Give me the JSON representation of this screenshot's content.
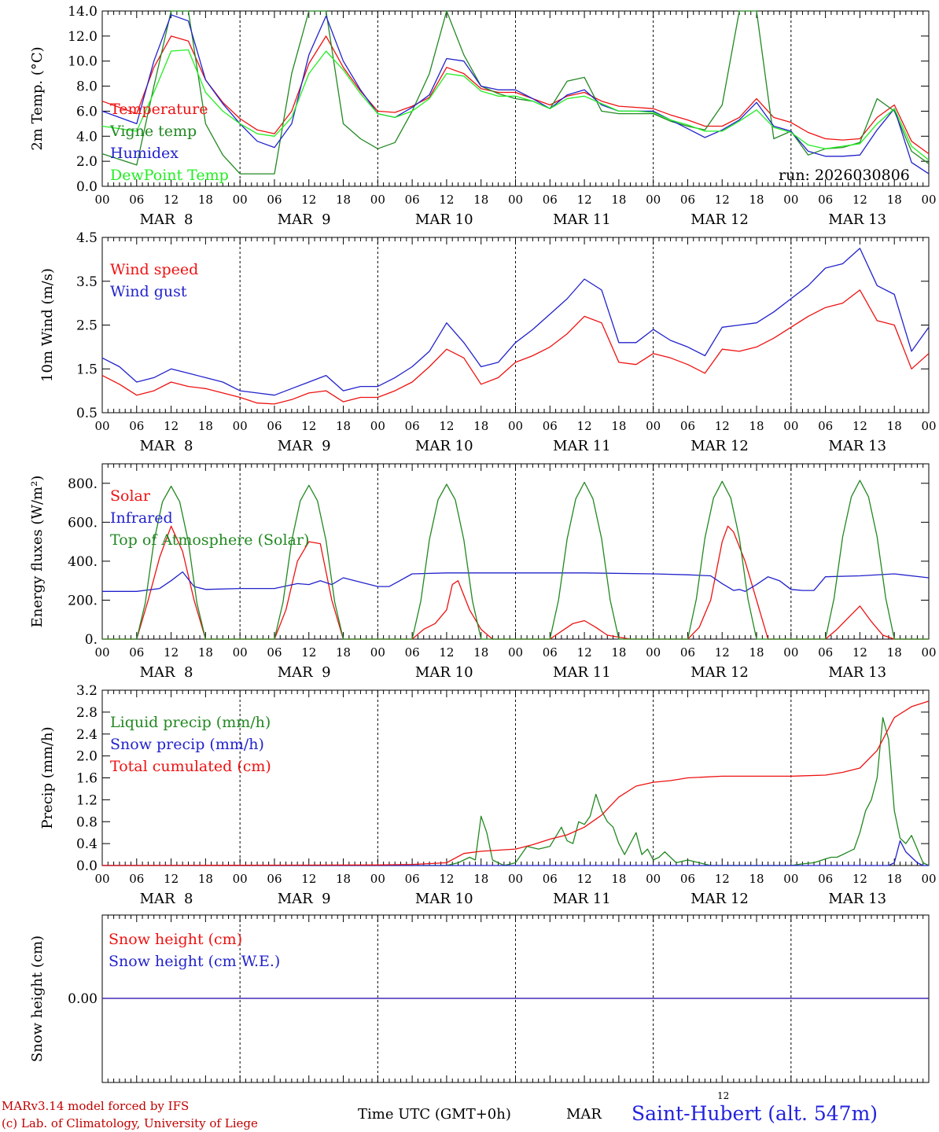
{
  "chart_data": [
    {
      "type": "line",
      "ylabel": "2m Temp. (°C)",
      "ylim": [
        0,
        14
      ],
      "yticks": [
        0,
        2,
        4,
        6,
        8,
        10,
        12,
        14
      ],
      "ytick_labels": [
        "0.0",
        "2.0",
        "4.0",
        "6.0",
        "8.0",
        "10.0",
        "12.0",
        "14.0"
      ],
      "xlim": [
        0,
        144
      ],
      "annotation": "run: 2026030806",
      "x": [
        0,
        6,
        9,
        12,
        15,
        18,
        21,
        24,
        27,
        30,
        33,
        36,
        39,
        42,
        45,
        48,
        51,
        54,
        57,
        60,
        63,
        66,
        69,
        72,
        75,
        78,
        81,
        84,
        87,
        90,
        93,
        96,
        99,
        102,
        105,
        108,
        111,
        114,
        117,
        120,
        123,
        126,
        129,
        132,
        135,
        138,
        141,
        144
      ],
      "series": [
        {
          "name": "Temperature",
          "color": "#ee1111",
          "values": [
            6.8,
            5.8,
            9.5,
            12.0,
            11.6,
            8.5,
            6.7,
            5.4,
            4.5,
            4.2,
            6.0,
            9.8,
            12.0,
            9.5,
            7.6,
            6.0,
            5.9,
            6.4,
            7.1,
            9.5,
            9.0,
            7.8,
            7.5,
            7.5,
            7.0,
            6.5,
            7.2,
            7.5,
            6.8,
            6.4,
            6.3,
            6.2,
            5.7,
            5.3,
            4.8,
            4.8,
            5.5,
            7.0,
            5.5,
            5.1,
            4.3,
            3.8,
            3.7,
            3.8,
            5.5,
            6.5,
            3.6,
            2.6
          ]
        },
        {
          "name": "Vigne temp",
          "color": "#228822",
          "values": [
            2.6,
            1.7,
            8.0,
            14.5,
            14.5,
            5.0,
            2.5,
            1.0,
            1.0,
            1.0,
            9.0,
            14.5,
            14.5,
            5.0,
            3.8,
            3.0,
            3.5,
            6.0,
            9.0,
            14.5,
            10.5,
            8.0,
            7.4,
            7.0,
            6.8,
            6.2,
            8.4,
            8.7,
            6.0,
            5.8,
            5.8,
            5.8,
            5.2,
            4.8,
            4.5,
            6.5,
            14.5,
            14.5,
            3.8,
            4.4,
            2.5,
            3.0,
            3.1,
            3.5,
            7.0,
            6.0,
            2.8,
            1.8
          ]
        },
        {
          "name": "Humidex",
          "color": "#2222cc",
          "values": [
            6.0,
            5.0,
            10.0,
            13.7,
            13.2,
            8.5,
            6.6,
            5.0,
            3.6,
            3.1,
            5.0,
            10.5,
            13.6,
            10.0,
            7.7,
            5.8,
            5.5,
            6.3,
            7.3,
            10.2,
            10.0,
            8.0,
            7.7,
            7.7,
            7.0,
            6.2,
            7.3,
            7.7,
            6.5,
            6.0,
            6.0,
            6.0,
            5.3,
            4.6,
            3.9,
            4.5,
            5.3,
            6.7,
            4.8,
            4.4,
            2.8,
            2.4,
            2.4,
            2.5,
            4.5,
            6.2,
            1.9,
            1.0
          ]
        },
        {
          "name": "DewPoint Temp",
          "color": "#22ee22",
          "values": [
            4.8,
            4.4,
            7.5,
            10.8,
            10.9,
            7.5,
            6.0,
            5.0,
            4.2,
            4.0,
            5.5,
            9.0,
            10.8,
            9.3,
            7.4,
            5.8,
            5.5,
            6.0,
            7.0,
            9.0,
            8.8,
            7.6,
            7.2,
            7.2,
            6.8,
            6.2,
            7.0,
            7.2,
            6.6,
            6.0,
            6.0,
            5.9,
            5.3,
            4.9,
            4.4,
            4.4,
            5.2,
            6.1,
            4.7,
            4.3,
            3.3,
            3.0,
            3.2,
            3.4,
            5.0,
            6.2,
            3.2,
            2.1
          ]
        }
      ]
    },
    {
      "type": "line",
      "ylabel": "10m Wind (m/s)",
      "ylim": [
        0.5,
        4.5
      ],
      "yticks": [
        0.5,
        1.5,
        2.5,
        3.5,
        4.5
      ],
      "ytick_labels": [
        "0.5",
        "1.5",
        "2.5",
        "3.5",
        "4.5"
      ],
      "xlim": [
        0,
        144
      ],
      "x": [
        0,
        3,
        6,
        9,
        12,
        15,
        18,
        21,
        24,
        27,
        30,
        33,
        36,
        39,
        42,
        45,
        48,
        51,
        54,
        57,
        60,
        63,
        66,
        69,
        72,
        75,
        78,
        81,
        84,
        87,
        90,
        93,
        96,
        99,
        102,
        105,
        108,
        111,
        114,
        117,
        120,
        123,
        126,
        129,
        132,
        135,
        138,
        141,
        144
      ],
      "series": [
        {
          "name": "Wind speed",
          "color": "#ee1111",
          "values": [
            1.35,
            1.15,
            0.9,
            1.0,
            1.2,
            1.1,
            1.05,
            0.95,
            0.85,
            0.72,
            0.7,
            0.8,
            0.95,
            1.0,
            0.75,
            0.85,
            0.85,
            1.0,
            1.2,
            1.55,
            1.95,
            1.75,
            1.15,
            1.3,
            1.65,
            1.8,
            2.0,
            2.3,
            2.7,
            2.55,
            1.65,
            1.6,
            1.85,
            1.75,
            1.6,
            1.4,
            1.95,
            1.9,
            2.0,
            2.2,
            2.45,
            2.7,
            2.9,
            3.0,
            3.3,
            2.6,
            2.5,
            1.5,
            1.85
          ]
        },
        {
          "name": "Wind gust",
          "color": "#2222cc",
          "values": [
            1.75,
            1.55,
            1.2,
            1.3,
            1.5,
            1.4,
            1.3,
            1.2,
            1.0,
            0.95,
            0.9,
            1.05,
            1.2,
            1.35,
            1.0,
            1.1,
            1.1,
            1.3,
            1.55,
            1.9,
            2.55,
            2.1,
            1.55,
            1.65,
            2.1,
            2.4,
            2.75,
            3.1,
            3.55,
            3.3,
            2.1,
            2.1,
            2.4,
            2.15,
            2.0,
            1.8,
            2.45,
            2.5,
            2.55,
            2.8,
            3.1,
            3.4,
            3.8,
            3.9,
            4.25,
            3.4,
            3.2,
            1.9,
            2.45
          ]
        }
      ]
    },
    {
      "type": "line",
      "ylabel": "Energy fluxes (W/m²)",
      "ylim": [
        0,
        900
      ],
      "yticks": [
        0,
        200,
        400,
        600,
        800
      ],
      "ytick_labels": [
        "0.",
        "200.",
        "400.",
        "600.",
        "800."
      ],
      "xlim": [
        0,
        144
      ],
      "series": [
        {
          "name": "Solar",
          "color": "#ee1111",
          "x": [
            0,
            6,
            8,
            10,
            12,
            14,
            16,
            18,
            24,
            30,
            32,
            34,
            36,
            38,
            40,
            42,
            48,
            54,
            56,
            58,
            60,
            61,
            62,
            64,
            66,
            68,
            72,
            78,
            80,
            82,
            84,
            86,
            88,
            92,
            96,
            102,
            104,
            106,
            108,
            109,
            110,
            112,
            114,
            116,
            120,
            126,
            128,
            130,
            132,
            134,
            136,
            138,
            144
          ],
          "values": [
            0,
            0,
            200,
            420,
            580,
            450,
            200,
            0,
            0,
            0,
            150,
            400,
            500,
            490,
            200,
            0,
            0,
            0,
            50,
            80,
            150,
            280,
            300,
            150,
            50,
            0,
            0,
            0,
            40,
            80,
            95,
            60,
            20,
            0,
            0,
            0,
            60,
            200,
            500,
            580,
            550,
            400,
            200,
            0,
            0,
            0,
            50,
            110,
            170,
            90,
            20,
            0,
            0
          ]
        },
        {
          "name": "Infrared",
          "color": "#2222cc",
          "x": [
            0,
            6,
            10,
            12,
            14,
            16,
            18,
            24,
            30,
            34,
            36,
            38,
            40,
            42,
            48,
            50,
            54,
            60,
            66,
            72,
            84,
            96,
            102,
            106,
            108,
            110,
            111,
            112,
            114,
            116,
            118,
            120,
            122,
            124,
            126,
            132,
            138,
            144
          ],
          "values": [
            245,
            245,
            260,
            300,
            345,
            270,
            255,
            260,
            260,
            285,
            280,
            300,
            280,
            315,
            270,
            270,
            335,
            340,
            340,
            340,
            340,
            335,
            330,
            325,
            285,
            250,
            255,
            245,
            280,
            320,
            300,
            255,
            250,
            250,
            320,
            325,
            335,
            315
          ]
        },
        {
          "name": "Top of Atmosphere (Solar)",
          "color": "#228822",
          "x": [
            0,
            6,
            7.5,
            9,
            10.5,
            12,
            13.5,
            15,
            16.5,
            18,
            30,
            31.5,
            33,
            34.5,
            36,
            37.5,
            39,
            40.5,
            42,
            54,
            55.5,
            57,
            58.5,
            60,
            61.5,
            63,
            64.5,
            66,
            78,
            79.5,
            81,
            82.5,
            84,
            85.5,
            87,
            88.5,
            90,
            102,
            103.5,
            105,
            106.5,
            108,
            109.5,
            111,
            112.5,
            114,
            126,
            127.5,
            129,
            130.5,
            132,
            133.5,
            135,
            136.5,
            138,
            144
          ],
          "values": [
            0,
            0,
            185,
            500,
            705,
            785,
            705,
            500,
            185,
            0,
            0,
            190,
            505,
            710,
            790,
            710,
            505,
            190,
            0,
            0,
            195,
            510,
            715,
            795,
            715,
            510,
            195,
            0,
            0,
            200,
            515,
            720,
            805,
            720,
            515,
            200,
            0,
            0,
            205,
            520,
            725,
            810,
            725,
            520,
            205,
            0,
            0,
            210,
            525,
            730,
            815,
            730,
            525,
            210,
            0,
            0
          ]
        }
      ]
    },
    {
      "type": "line",
      "ylabel": "Precip (mm/h)",
      "ylim": [
        0,
        3.2
      ],
      "yticks": [
        0,
        0.4,
        0.8,
        1.2,
        1.6,
        2.0,
        2.4,
        2.8,
        3.2
      ],
      "ytick_labels": [
        "0.0",
        "0.4",
        "0.8",
        "1.2",
        "1.6",
        "2.0",
        "2.4",
        "2.8",
        "3.2"
      ],
      "xlim": [
        0,
        144
      ],
      "series": [
        {
          "name": "Liquid precip (mm/h)",
          "color": "#228822",
          "x": [
            0,
            60,
            62,
            64,
            65,
            66,
            67,
            68,
            69,
            70,
            72,
            74,
            76,
            78,
            80,
            81,
            82,
            83,
            84,
            85,
            86,
            87,
            88,
            89,
            90,
            91,
            92,
            93,
            94,
            95,
            96,
            97,
            98,
            100,
            102,
            104,
            106,
            108,
            110,
            112,
            114,
            116,
            118,
            120,
            122,
            124,
            126,
            127,
            128,
            129,
            130,
            131,
            132,
            133,
            134,
            135,
            136,
            137,
            138,
            139,
            140,
            141,
            142,
            143,
            144
          ],
          "values": [
            0,
            0,
            0.05,
            0.15,
            0.1,
            0.9,
            0.6,
            0.1,
            0.05,
            0,
            0.05,
            0.35,
            0.3,
            0.35,
            0.7,
            0.45,
            0.4,
            0.8,
            0.75,
            0.9,
            1.3,
            1.0,
            0.8,
            0.7,
            0.4,
            0.2,
            0.4,
            0.6,
            0.2,
            0.3,
            0.1,
            0.15,
            0.25,
            0.05,
            0.1,
            0.05,
            0,
            0,
            0,
            0,
            0,
            0,
            0,
            0,
            0.03,
            0.05,
            0.12,
            0.15,
            0.15,
            0.2,
            0.25,
            0.3,
            0.6,
            1.0,
            1.2,
            1.6,
            2.7,
            2.3,
            1.0,
            0.5,
            0.4,
            0.55,
            0.3,
            0.05,
            0
          ]
        },
        {
          "name": "Snow precip (mm/h)",
          "color": "#2222cc",
          "x": [
            0,
            137,
            138,
            139,
            140,
            141,
            142,
            143,
            144
          ],
          "values": [
            0,
            0,
            0.05,
            0.45,
            0.25,
            0.15,
            0.05,
            0,
            0
          ]
        },
        {
          "name": "Total cumulated (cm)",
          "color": "#ee1111",
          "x": [
            0,
            24,
            48,
            54,
            60,
            63,
            66,
            69,
            72,
            75,
            78,
            81,
            84,
            87,
            90,
            93,
            96,
            99,
            102,
            108,
            114,
            120,
            126,
            129,
            132,
            135,
            138,
            141,
            144
          ],
          "values": [
            0,
            0.005,
            0.01,
            0.02,
            0.05,
            0.22,
            0.26,
            0.28,
            0.3,
            0.38,
            0.48,
            0.56,
            0.7,
            0.92,
            1.25,
            1.45,
            1.52,
            1.55,
            1.6,
            1.63,
            1.63,
            1.63,
            1.65,
            1.7,
            1.78,
            2.1,
            2.7,
            2.9,
            3.0
          ]
        }
      ]
    },
    {
      "type": "line",
      "ylabel": "Snow height (cm)",
      "yticks": [
        0
      ],
      "ytick_labels": [
        "0.00"
      ],
      "xlim": [
        0,
        144
      ],
      "series": [
        {
          "name": "Snow height (cm)",
          "color": "#ee1111",
          "x": [
            0,
            144
          ],
          "values": [
            0,
            0
          ]
        },
        {
          "name": "Snow height (cm W.E.)",
          "color": "#2222cc",
          "x": [
            0,
            144
          ],
          "values": [
            0,
            0
          ]
        }
      ]
    }
  ],
  "x_axis": {
    "hour_labels": [
      "00",
      "06",
      "12",
      "18",
      "00",
      "06",
      "12",
      "18",
      "00",
      "06",
      "12",
      "18",
      "00",
      "06",
      "12",
      "18",
      "00",
      "06",
      "12",
      "18",
      "00",
      "06",
      "12",
      "18",
      "00"
    ],
    "day_labels": [
      "MAR  8",
      "MAR  9",
      "MAR 10",
      "MAR 11",
      "MAR 12",
      "MAR 13"
    ]
  },
  "footer": {
    "credit_line1": "MARv3.14 model forced by IFS",
    "credit_line2": "(c) Lab. of Climatology, University of Liege",
    "time_label": "Time UTC (GMT+0h)",
    "month": "MAR",
    "hour_small": "12",
    "station": "Saint-Hubert (alt. 547m)"
  }
}
